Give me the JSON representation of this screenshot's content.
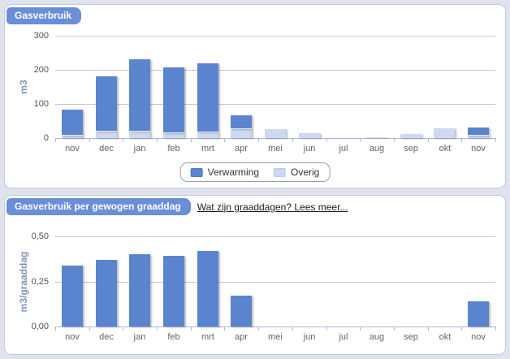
{
  "panels": [
    {
      "tab": "Gasverbruik"
    },
    {
      "tab": "Gasverbruik per gewogen graaddag",
      "link_text": "Wat zijn graaddagen? Lees meer..."
    }
  ],
  "colors": {
    "bar_dark": "#5b84cf",
    "bar_light": "#cdd9f1",
    "tab_background": "#6b8ed9",
    "axis_line": "#a9bbdf",
    "gridline": "#c9c9c9",
    "panel_border": "#c5cbd7",
    "page_background": "#dfe3ed"
  },
  "chart_data": [
    {
      "type": "bar",
      "stacked": true,
      "title": "Gasverbruik",
      "categories": [
        "nov",
        "dec",
        "jan",
        "feb",
        "mrt",
        "apr",
        "mei",
        "jun",
        "jul",
        "aug",
        "sep",
        "okt",
        "nov"
      ],
      "series": [
        {
          "name": "Verwarming",
          "color": "#5b84cf",
          "values": [
            75,
            162,
            213,
            194,
            203,
            40,
            0,
            0,
            0,
            0,
            0,
            0,
            24
          ]
        },
        {
          "name": "Overig",
          "color": "#cdd9f1",
          "values": [
            8,
            18,
            19,
            14,
            17,
            26,
            26,
            14,
            0,
            3,
            12,
            28,
            8
          ]
        }
      ],
      "xlabel": "",
      "ylabel": "m3",
      "ylim": [
        0,
        300
      ],
      "yticks": [
        {
          "value": 0,
          "label": "0"
        },
        {
          "value": 100,
          "label": "100"
        },
        {
          "value": 200,
          "label": "200"
        },
        {
          "value": 300,
          "label": "300"
        }
      ],
      "grid": true,
      "legend_position": "bottom-center",
      "legend_entries": [
        "Verwarming",
        "Overig"
      ]
    },
    {
      "type": "bar",
      "stacked": false,
      "title": "Gasverbruik per gewogen graaddag",
      "categories": [
        "nov",
        "dec",
        "jan",
        "feb",
        "mrt",
        "apr",
        "mei",
        "jun",
        "jul",
        "aug",
        "sep",
        "okt",
        "nov"
      ],
      "bar_color": "#5b84cf",
      "values": [
        0.34,
        0.37,
        0.4,
        0.39,
        0.42,
        0.17,
        0,
        0,
        0,
        0,
        0,
        0,
        0.14
      ],
      "xlabel": "",
      "ylabel": "m3/graaddag",
      "ylim": [
        0,
        0.5
      ],
      "yticks": [
        {
          "value": 0,
          "label": "0,00"
        },
        {
          "value": 0.25,
          "label": "0,25"
        },
        {
          "value": 0.5,
          "label": "0,50"
        }
      ],
      "grid": true,
      "legend_position": "none"
    }
  ]
}
